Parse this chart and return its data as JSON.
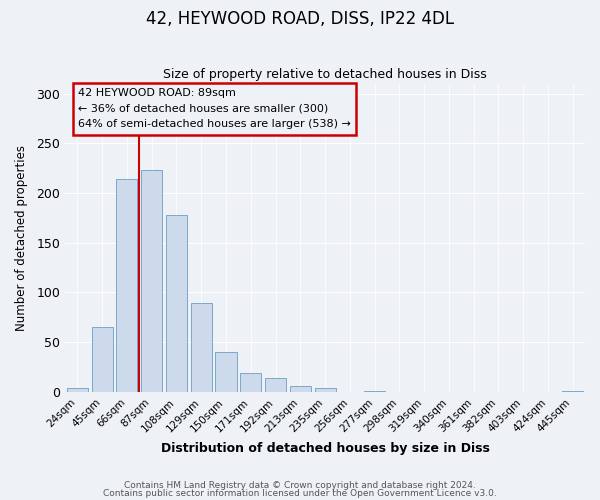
{
  "title": "42, HEYWOOD ROAD, DISS, IP22 4DL",
  "subtitle": "Size of property relative to detached houses in Diss",
  "xlabel": "Distribution of detached houses by size in Diss",
  "ylabel": "Number of detached properties",
  "footnote1": "Contains HM Land Registry data © Crown copyright and database right 2024.",
  "footnote2": "Contains public sector information licensed under the Open Government Licence v3.0.",
  "bin_labels": [
    "24sqm",
    "45sqm",
    "66sqm",
    "87sqm",
    "108sqm",
    "129sqm",
    "150sqm",
    "171sqm",
    "192sqm",
    "213sqm",
    "235sqm",
    "256sqm",
    "277sqm",
    "298sqm",
    "319sqm",
    "340sqm",
    "361sqm",
    "382sqm",
    "403sqm",
    "424sqm",
    "445sqm"
  ],
  "bar_values": [
    4,
    65,
    214,
    223,
    178,
    89,
    40,
    19,
    14,
    6,
    4,
    0,
    1,
    0,
    0,
    0,
    0,
    0,
    0,
    0,
    1
  ],
  "bar_color": "#ccdaeb",
  "bar_edge_color": "#7aa8cc",
  "vline_color": "#cc0000",
  "ylim": [
    0,
    310
  ],
  "yticks": [
    0,
    50,
    100,
    150,
    200,
    250,
    300
  ],
  "annotation_line1": "42 HEYWOOD ROAD: 89sqm",
  "annotation_line2": "← 36% of detached houses are smaller (300)",
  "annotation_line3": "64% of semi-detached houses are larger (538) →",
  "box_edge_color": "#cc0000",
  "background_color": "#eef2f7",
  "footnote_color": "#555555",
  "grid_color": "#ffffff"
}
